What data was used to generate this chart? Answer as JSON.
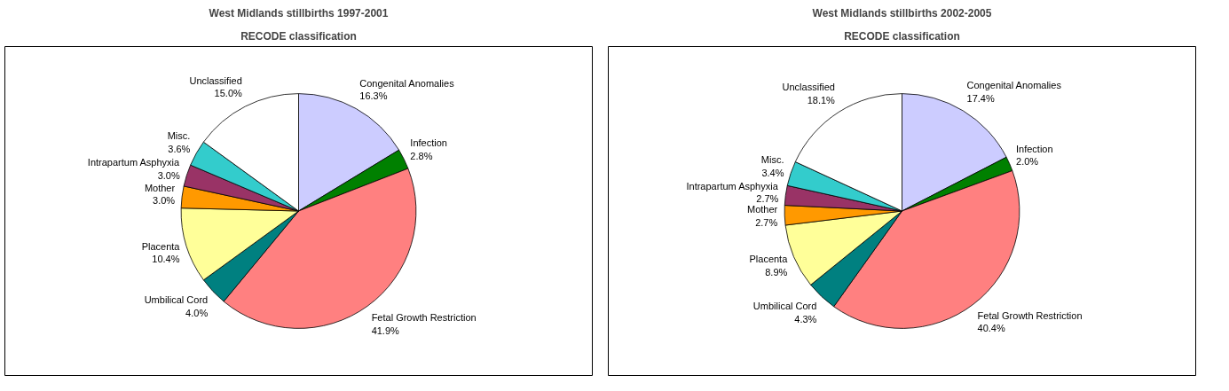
{
  "chart_data": [
    {
      "type": "pie",
      "title": "West Midlands stillbirths 1997-2001",
      "subtitle": "RECODE classification",
      "categories": [
        "Congenital Anomalies",
        "Infection",
        "Fetal Growth Restriction",
        "Umbilical Cord",
        "Placenta",
        "Mother",
        "Intrapartum Asphyxia",
        "Misc.",
        "Unclassified"
      ],
      "values": [
        16.3,
        2.8,
        41.9,
        4.0,
        10.4,
        3.0,
        3.0,
        3.6,
        15.0
      ],
      "value_labels": [
        "16.3%",
        "2.8%",
        "41.9%",
        "4.0%",
        "10.4%",
        "3.0%",
        "3.0%",
        "3.6%",
        "15.0%"
      ],
      "colors": [
        "#ccccff",
        "#008000",
        "#ff8080",
        "#008080",
        "#ffff99",
        "#ff9900",
        "#993366",
        "#33cccc",
        "#ffffff"
      ]
    },
    {
      "type": "pie",
      "title": "West Midlands stillbirths 2002-2005",
      "subtitle": "RECODE classification",
      "categories": [
        "Congenital Anomalies",
        "Infection",
        "Fetal Growth Restriction",
        "Umbilical Cord",
        "Placenta",
        "Mother",
        "Intrapartum Asphyxia",
        "Misc.",
        "Unclassified"
      ],
      "values": [
        17.4,
        2.0,
        40.4,
        4.3,
        8.9,
        2.7,
        2.7,
        3.4,
        18.1
      ],
      "value_labels": [
        "17.4%",
        "2.0%",
        "40.4%",
        "4.3%",
        "8.9%",
        "2.7%",
        "2.7%",
        "3.4%",
        "18.1%"
      ],
      "colors": [
        "#ccccff",
        "#008000",
        "#ff8080",
        "#008080",
        "#ffff99",
        "#ff9900",
        "#993366",
        "#33cccc",
        "#ffffff"
      ]
    }
  ]
}
